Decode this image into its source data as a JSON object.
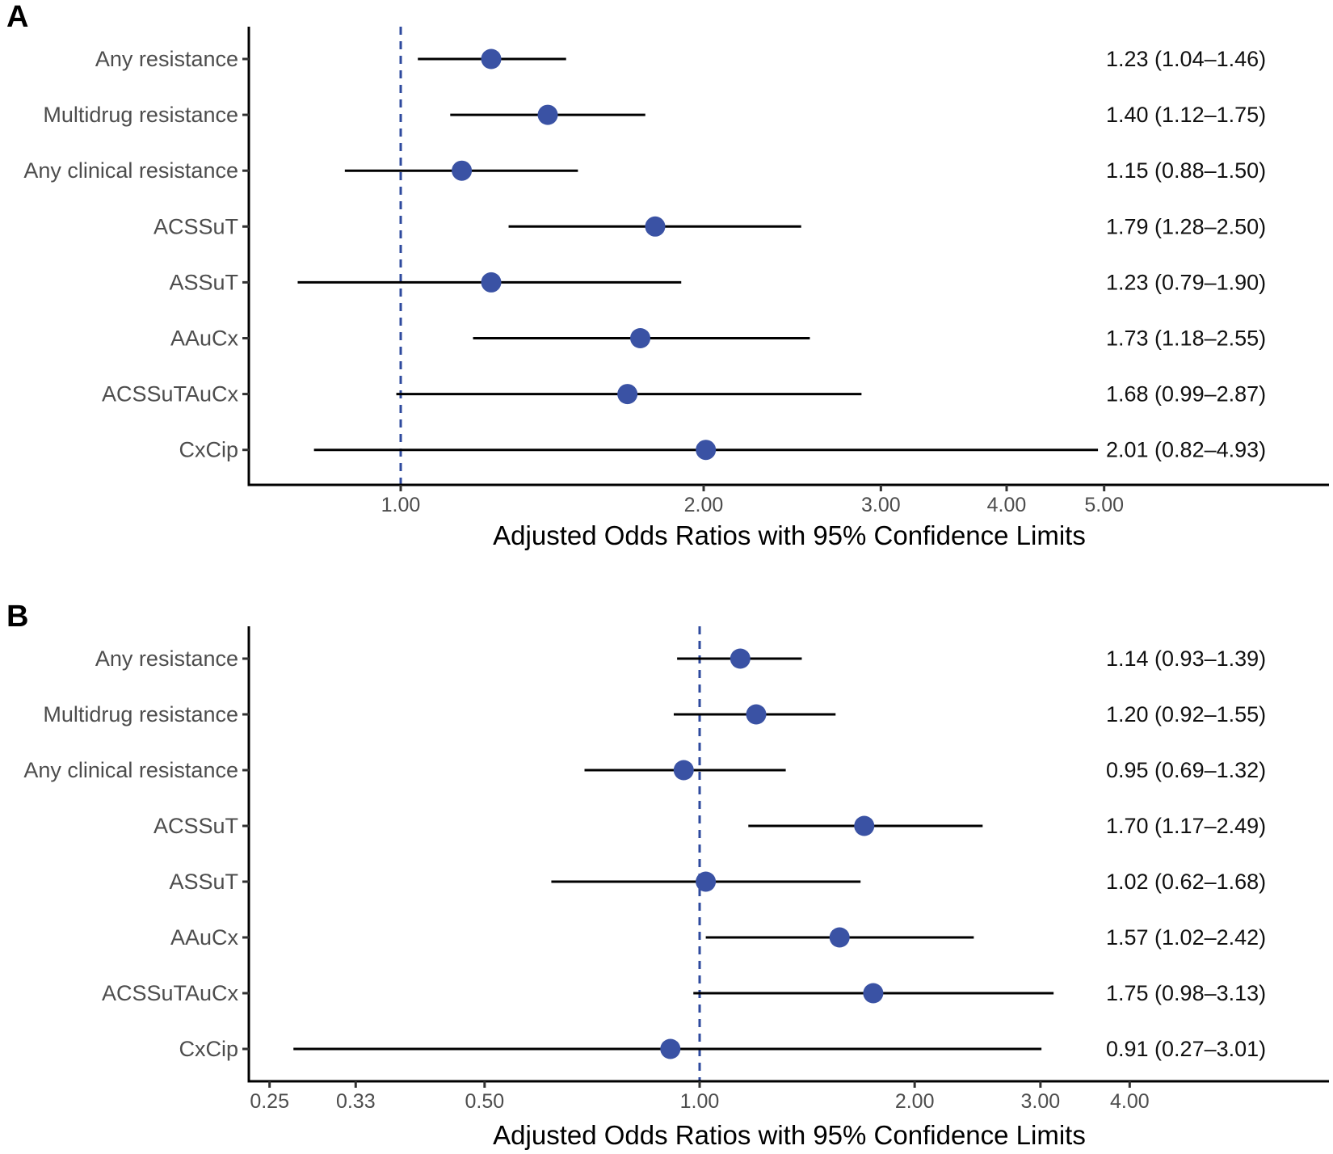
{
  "chart_data": [
    {
      "type": "forest",
      "panel": "A",
      "xlabel": "Adjusted Odds Ratios with 95% Confidence Limits",
      "xscale": "log",
      "xlim": [
        0.79,
        5.6
      ],
      "xticks": [
        1.0,
        2.0,
        3.0,
        4.0,
        5.0
      ],
      "xtick_labels": [
        "1.00",
        "2.00",
        "3.00",
        "4.00",
        "5.00"
      ],
      "reference_line": 1.0,
      "rows": [
        {
          "label": "Any resistance",
          "or": 1.23,
          "lo": 1.04,
          "hi": 1.46,
          "text": "1.23 (1.04–1.46)"
        },
        {
          "label": "Multidrug resistance",
          "or": 1.4,
          "lo": 1.12,
          "hi": 1.75,
          "text": "1.40 (1.12–1.75)"
        },
        {
          "label": "Any clinical resistance",
          "or": 1.15,
          "lo": 0.88,
          "hi": 1.5,
          "text": "1.15 (0.88–1.50)"
        },
        {
          "label": "ACSSuT",
          "or": 1.79,
          "lo": 1.28,
          "hi": 2.5,
          "text": "1.79 (1.28–2.50)"
        },
        {
          "label": "ASSuT",
          "or": 1.23,
          "lo": 0.79,
          "hi": 1.9,
          "text": "1.23 (0.79–1.90)"
        },
        {
          "label": "AAuCx",
          "or": 1.73,
          "lo": 1.18,
          "hi": 2.55,
          "text": "1.73 (1.18–2.55)"
        },
        {
          "label": "ACSSuTAuCx",
          "or": 1.68,
          "lo": 0.99,
          "hi": 2.87,
          "text": "1.68 (0.99–2.87)"
        },
        {
          "label": "CxCip",
          "or": 2.01,
          "lo": 0.82,
          "hi": 4.93,
          "text": "2.01 (0.82–4.93)"
        }
      ]
    },
    {
      "type": "forest",
      "panel": "B",
      "xlabel": "Adjusted Odds Ratios with 95% Confidence Limits",
      "xscale": "log",
      "xlim": [
        0.235,
        5.0
      ],
      "xticks": [
        0.25,
        0.33,
        0.5,
        1.0,
        2.0,
        3.0,
        4.0
      ],
      "xtick_labels": [
        "0.25",
        "0.33",
        "0.50",
        "1.00",
        "2.00",
        "3.00",
        "4.00"
      ],
      "reference_line": 1.0,
      "rows": [
        {
          "label": "Any resistance",
          "or": 1.14,
          "lo": 0.93,
          "hi": 1.39,
          "text": "1.14 (0.93–1.39)"
        },
        {
          "label": "Multidrug resistance",
          "or": 1.2,
          "lo": 0.92,
          "hi": 1.55,
          "text": "1.20 (0.92–1.55)"
        },
        {
          "label": "Any clinical resistance",
          "or": 0.95,
          "lo": 0.69,
          "hi": 1.32,
          "text": "0.95 (0.69–1.32)"
        },
        {
          "label": "ACSSuT",
          "or": 1.7,
          "lo": 1.17,
          "hi": 2.49,
          "text": "1.70 (1.17–2.49)"
        },
        {
          "label": "ASSuT",
          "or": 1.02,
          "lo": 0.62,
          "hi": 1.68,
          "text": "1.02 (0.62–1.68)"
        },
        {
          "label": "AAuCx",
          "or": 1.57,
          "lo": 1.02,
          "hi": 2.42,
          "text": "1.57 (1.02–2.42)"
        },
        {
          "label": "ACSSuTAuCx",
          "or": 1.75,
          "lo": 0.98,
          "hi": 3.13,
          "text": "1.75 (0.98–3.13)"
        },
        {
          "label": "CxCip",
          "or": 0.91,
          "lo": 0.27,
          "hi": 3.01,
          "text": "0.91 (0.27–3.01)"
        }
      ]
    }
  ],
  "colors": {
    "point": "#3a52a4",
    "reference_line": "#2e4a9e",
    "ci_line": "#000000"
  }
}
